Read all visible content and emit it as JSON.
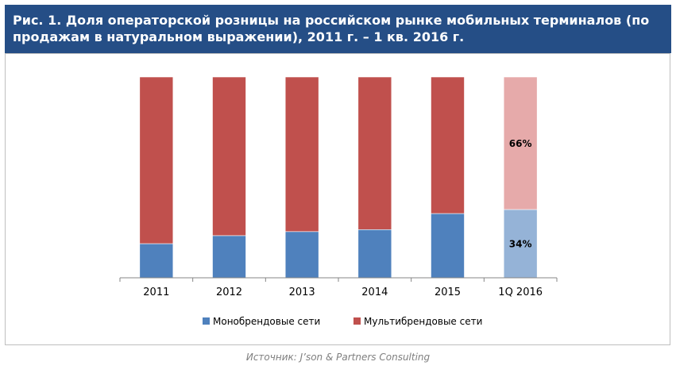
{
  "title": "Рис. 1. Доля операторской розницы на российском рынке мобильных терминалов (по продажам в натуральном выражении), 2011 г. – 1 кв. 2016 г.",
  "source": "Источник: J’son & Partners Consulting",
  "chart_data": {
    "type": "bar",
    "stacked": true,
    "percent": true,
    "title": "Рис. 1. Доля операторской розницы на российском рынке мобильных терминалов (по продажам в натуральном выражении), 2011 г. – 1 кв. 2016 г.",
    "xlabel": "",
    "ylabel": "",
    "ylim": [
      0,
      100
    ],
    "categories": [
      "2011",
      "2012",
      "2013",
      "2014",
      "2015",
      "1Q 2016"
    ],
    "series": [
      {
        "name": "Монобрендовые сети",
        "values": [
          17,
          21,
          23,
          24,
          32,
          34
        ],
        "color": "#4f81bd",
        "highlight_color": "#95b3d7"
      },
      {
        "name": "Мультибрендовые сети",
        "values": [
          83,
          79,
          77,
          76,
          68,
          66
        ],
        "color": "#c0504d",
        "highlight_color": "#e6aaaa"
      }
    ],
    "data_labels": [
      {
        "category": "1Q 2016",
        "series": "Монобрендовые сети",
        "text": "34%"
      },
      {
        "category": "1Q 2016",
        "series": "Мультибрендовые сети",
        "text": "66%"
      }
    ],
    "highlight_category": "1Q 2016",
    "legend_position": "bottom",
    "grid": false
  }
}
